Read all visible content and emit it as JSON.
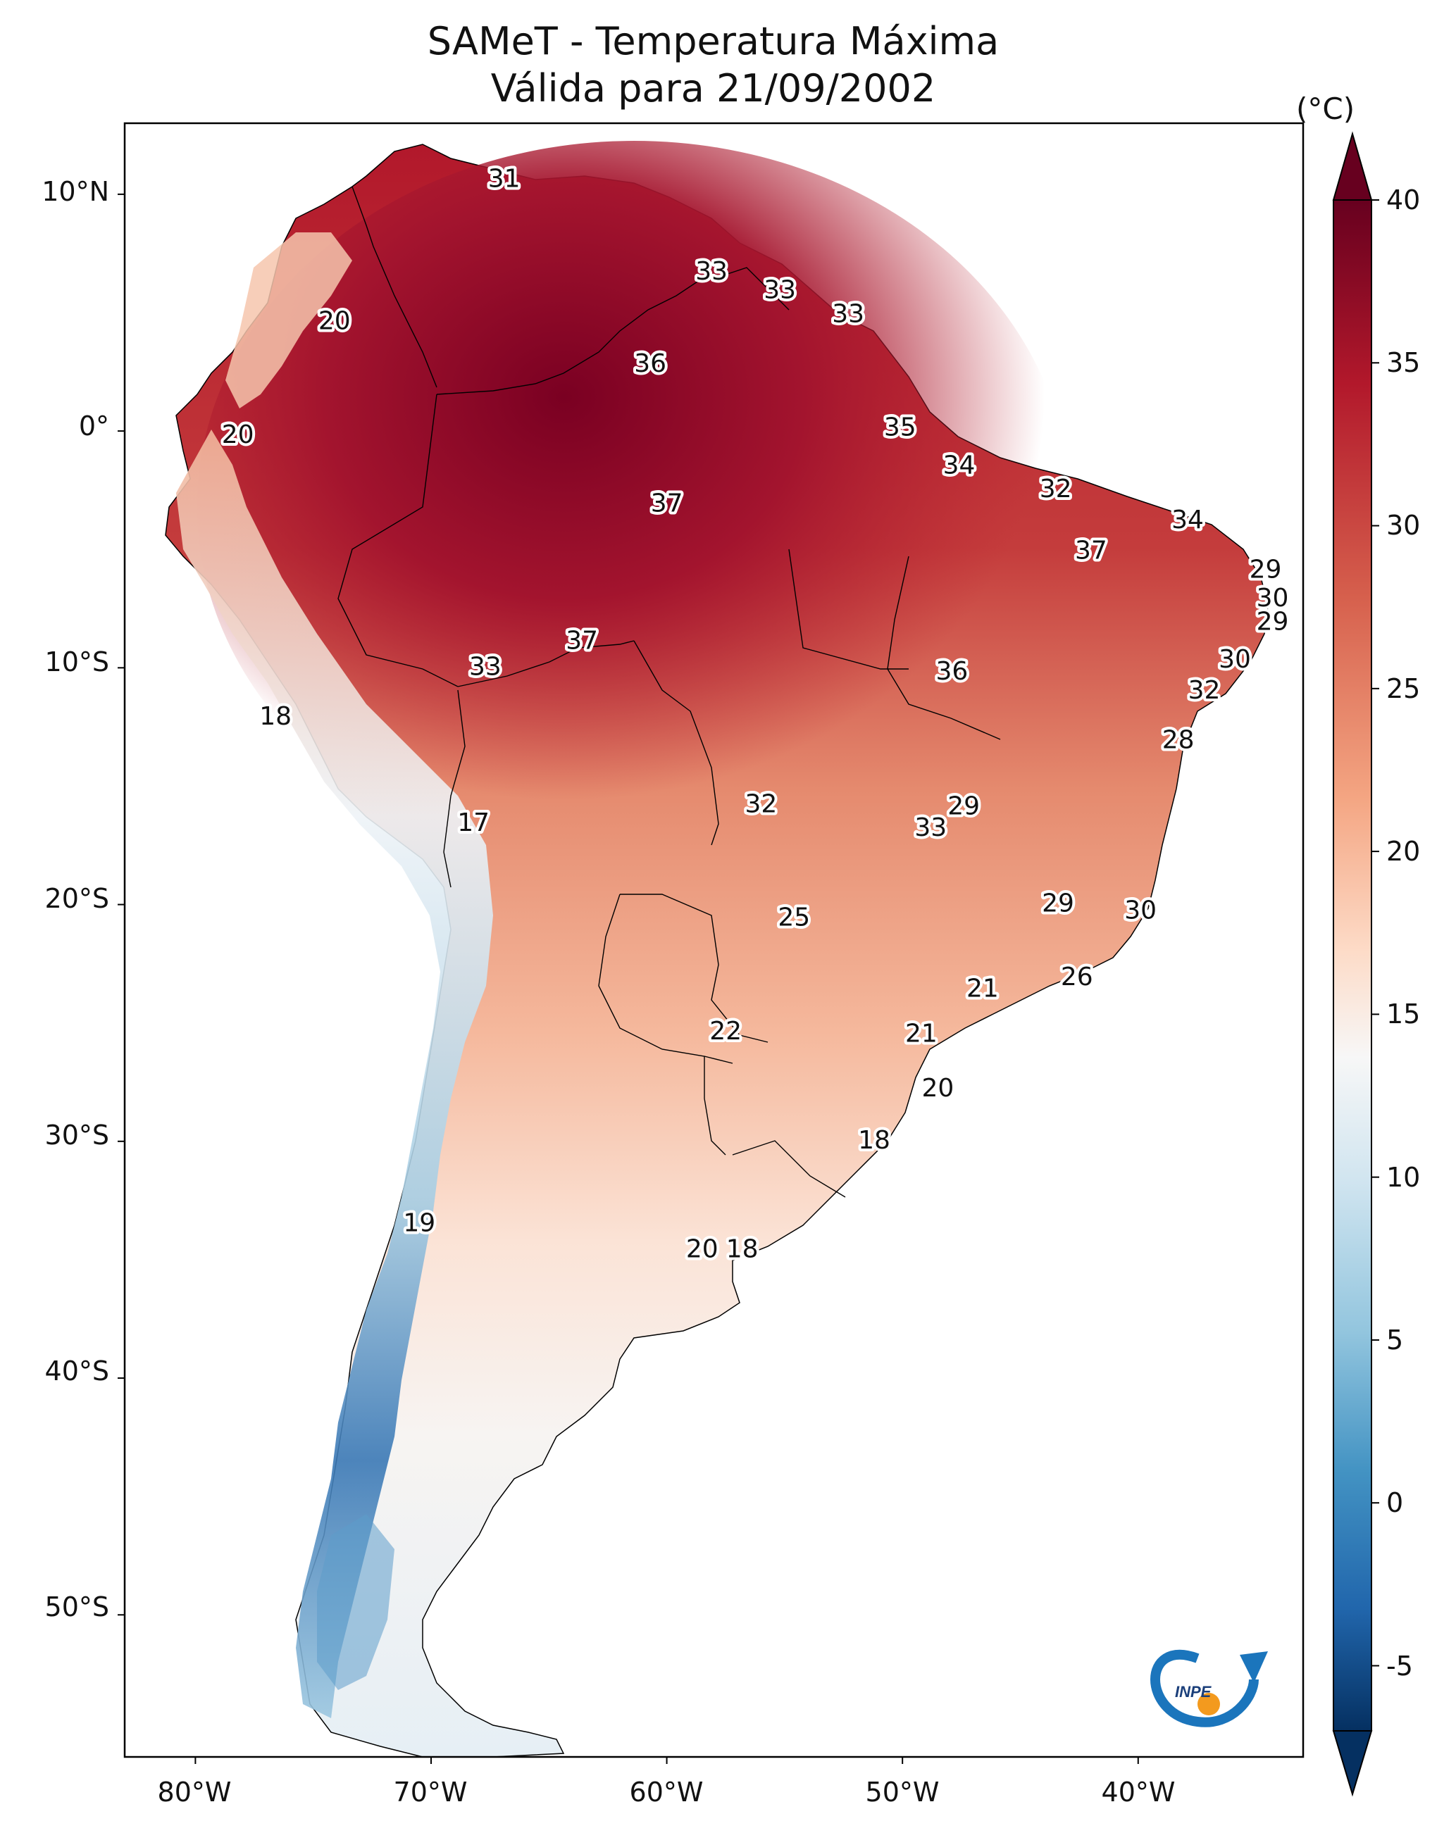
{
  "title": {
    "line1": "SAMeT - Temperatura Máxima",
    "line2": "Válida para 21/09/2002"
  },
  "map": {
    "lat_ticks": [
      "10°N",
      "0°",
      "10°S",
      "20°S",
      "30°S",
      "40°S",
      "50°S"
    ],
    "lon_ticks": [
      "80°W",
      "70°W",
      "60°W",
      "50°W",
      "40°W"
    ],
    "extent": {
      "lon_min": -83,
      "lon_max": -33,
      "lat_min": -56,
      "lat_max": 13
    }
  },
  "colorbar": {
    "unit": "(°C)",
    "ticks": [
      "40",
      "35",
      "30",
      "25",
      "20",
      "15",
      "10",
      "5",
      "0",
      "-5"
    ],
    "min": -7,
    "max": 40,
    "colors": {
      "hot": "#67001f",
      "warm": "#d6604d",
      "mild": "#fddbc7",
      "neutral": "#f7f7f7",
      "cool": "#92c5de",
      "cold": "#053061"
    }
  },
  "contour_labels": [
    {
      "text": "31",
      "lon": -66.9,
      "lat": 10.6
    },
    {
      "text": "20",
      "lon": -74.1,
      "lat": 4.6
    },
    {
      "text": "33",
      "lon": -58.1,
      "lat": 6.7
    },
    {
      "text": "33",
      "lon": -55.2,
      "lat": 5.9
    },
    {
      "text": "33",
      "lon": -52.3,
      "lat": 4.9
    },
    {
      "text": "36",
      "lon": -60.7,
      "lat": 2.8
    },
    {
      "text": "20",
      "lon": -78.2,
      "lat": -0.2
    },
    {
      "text": "35",
      "lon": -50.1,
      "lat": 0.1
    },
    {
      "text": "34",
      "lon": -47.6,
      "lat": -1.5
    },
    {
      "text": "37",
      "lon": -60.0,
      "lat": -3.1
    },
    {
      "text": "32",
      "lon": -43.5,
      "lat": -2.5
    },
    {
      "text": "34",
      "lon": -37.9,
      "lat": -3.8
    },
    {
      "text": "37",
      "lon": -42.0,
      "lat": -5.1
    },
    {
      "text": "29",
      "lon": -34.6,
      "lat": -5.9
    },
    {
      "text": "30",
      "lon": -34.3,
      "lat": -7.1
    },
    {
      "text": "29",
      "lon": -34.3,
      "lat": -8.1
    },
    {
      "text": "37",
      "lon": -63.6,
      "lat": -8.9
    },
    {
      "text": "33",
      "lon": -67.7,
      "lat": -10.0
    },
    {
      "text": "36",
      "lon": -47.9,
      "lat": -10.2
    },
    {
      "text": "30",
      "lon": -35.9,
      "lat": -9.7
    },
    {
      "text": "32",
      "lon": -37.2,
      "lat": -11.0
    },
    {
      "text": "18",
      "lon": -76.6,
      "lat": -12.1
    },
    {
      "text": "28",
      "lon": -38.3,
      "lat": -13.1
    },
    {
      "text": "32",
      "lon": -56.0,
      "lat": -15.8
    },
    {
      "text": "29",
      "lon": -47.4,
      "lat": -15.9
    },
    {
      "text": "33",
      "lon": -48.8,
      "lat": -16.8
    },
    {
      "text": "17",
      "lon": -68.2,
      "lat": -16.6
    },
    {
      "text": "29",
      "lon": -43.4,
      "lat": -20.0
    },
    {
      "text": "30",
      "lon": -39.9,
      "lat": -20.3
    },
    {
      "text": "25",
      "lon": -54.6,
      "lat": -20.6
    },
    {
      "text": "26",
      "lon": -42.6,
      "lat": -23.1
    },
    {
      "text": "21",
      "lon": -46.6,
      "lat": -23.6
    },
    {
      "text": "21",
      "lon": -49.2,
      "lat": -25.5
    },
    {
      "text": "22",
      "lon": -57.5,
      "lat": -25.4
    },
    {
      "text": "20",
      "lon": -48.5,
      "lat": -27.8
    },
    {
      "text": "18",
      "lon": -51.2,
      "lat": -30.0
    },
    {
      "text": "19",
      "lon": -70.5,
      "lat": -33.5
    },
    {
      "text": "20",
      "lon": -58.5,
      "lat": -34.6
    },
    {
      "text": "18",
      "lon": -56.8,
      "lat": -34.6
    }
  ],
  "logo": {
    "text": "INPE"
  }
}
